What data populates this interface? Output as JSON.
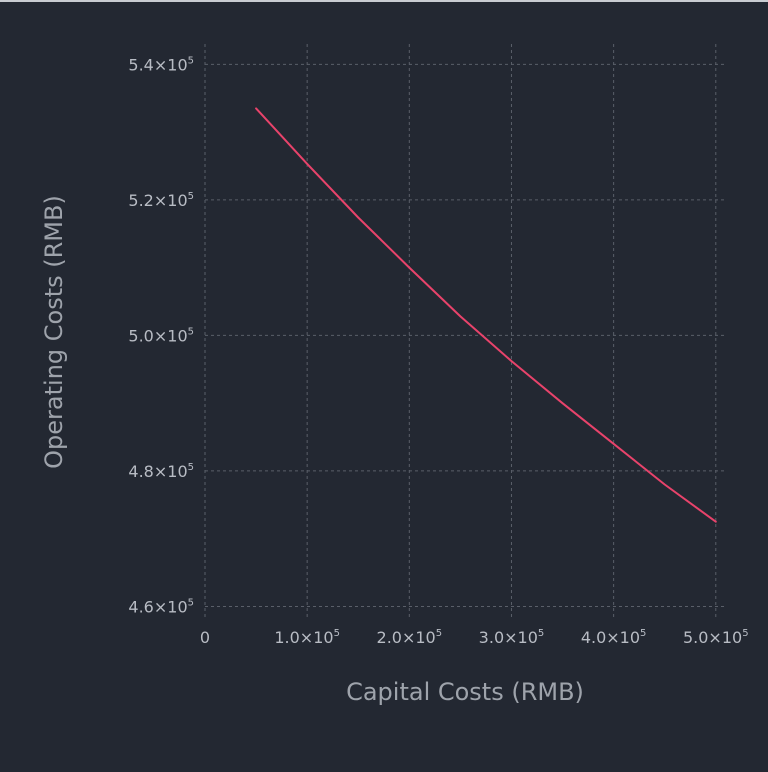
{
  "chart_data": {
    "type": "line",
    "xlabel": "Capital Costs (RMB)",
    "ylabel": "Operating Costs (RMB)",
    "xlim": [
      0,
      510000
    ],
    "ylim": [
      458000,
      543000
    ],
    "x_ticks": [
      {
        "value": 0,
        "mantissa": "0",
        "exp": ""
      },
      {
        "value": 100000,
        "mantissa": "1.0×10",
        "exp": "5"
      },
      {
        "value": 200000,
        "mantissa": "2.0×10",
        "exp": "5"
      },
      {
        "value": 300000,
        "mantissa": "3.0×10",
        "exp": "5"
      },
      {
        "value": 400000,
        "mantissa": "4.0×10",
        "exp": "5"
      },
      {
        "value": 500000,
        "mantissa": "5.0×10",
        "exp": "5"
      }
    ],
    "y_ticks": [
      {
        "value": 460000,
        "mantissa": "4.6×10",
        "exp": "5"
      },
      {
        "value": 480000,
        "mantissa": "4.8×10",
        "exp": "5"
      },
      {
        "value": 500000,
        "mantissa": "5.0×10",
        "exp": "5"
      },
      {
        "value": 520000,
        "mantissa": "5.2×10",
        "exp": "5"
      },
      {
        "value": 540000,
        "mantissa": "5.4×10",
        "exp": "5"
      }
    ],
    "grid": true,
    "series": [
      {
        "color": "#e8436b",
        "x": [
          50000,
          100000,
          150000,
          200000,
          250000,
          300000,
          350000,
          400000,
          450000,
          500000
        ],
        "y": [
          533500,
          525300,
          517400,
          510000,
          502800,
          496200,
          490000,
          484000,
          478000,
          472500
        ]
      }
    ]
  }
}
